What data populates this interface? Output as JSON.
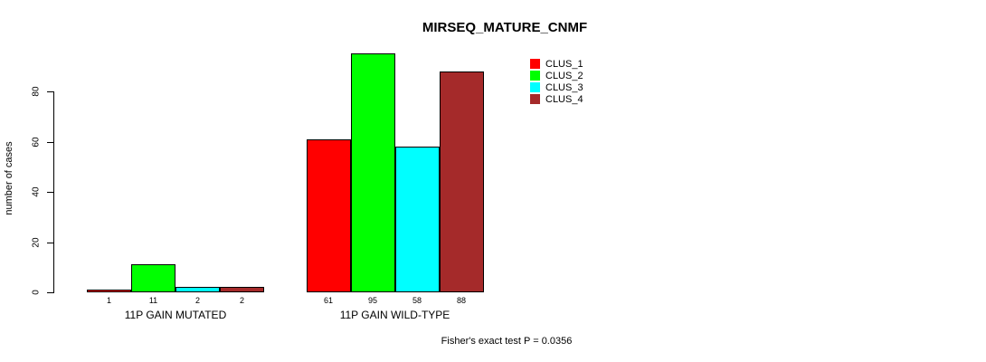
{
  "chart_data": {
    "type": "bar",
    "title": "MIRSEQ_MATURE_CNMF",
    "categories": [
      "11P GAIN MUTATED",
      "11P GAIN WILD-TYPE"
    ],
    "series": [
      {
        "name": "CLUS_1",
        "color": "#FF0000",
        "values": [
          1,
          61
        ]
      },
      {
        "name": "CLUS_2",
        "color": "#00FF00",
        "values": [
          11,
          95
        ]
      },
      {
        "name": "CLUS_3",
        "color": "#00FFFF",
        "values": [
          2,
          58
        ]
      },
      {
        "name": "CLUS_4",
        "color": "#A52A2A",
        "values": [
          2,
          88
        ]
      }
    ],
    "bar_value_labels": [
      [
        "1",
        "11",
        "2",
        "2"
      ],
      [
        "61",
        "95",
        "58",
        "88"
      ]
    ],
    "xlabel": "",
    "ylabel": "number of cases",
    "yticks": [
      0,
      20,
      40,
      60,
      80
    ],
    "ylim": [
      0,
      95
    ],
    "grid": false,
    "legend_position": "top-right",
    "legend_entries": [
      "CLUS_1",
      "CLUS_2",
      "CLUS_3",
      "CLUS_4"
    ],
    "annotation": "Fisher's exact test P = 0.0356"
  }
}
